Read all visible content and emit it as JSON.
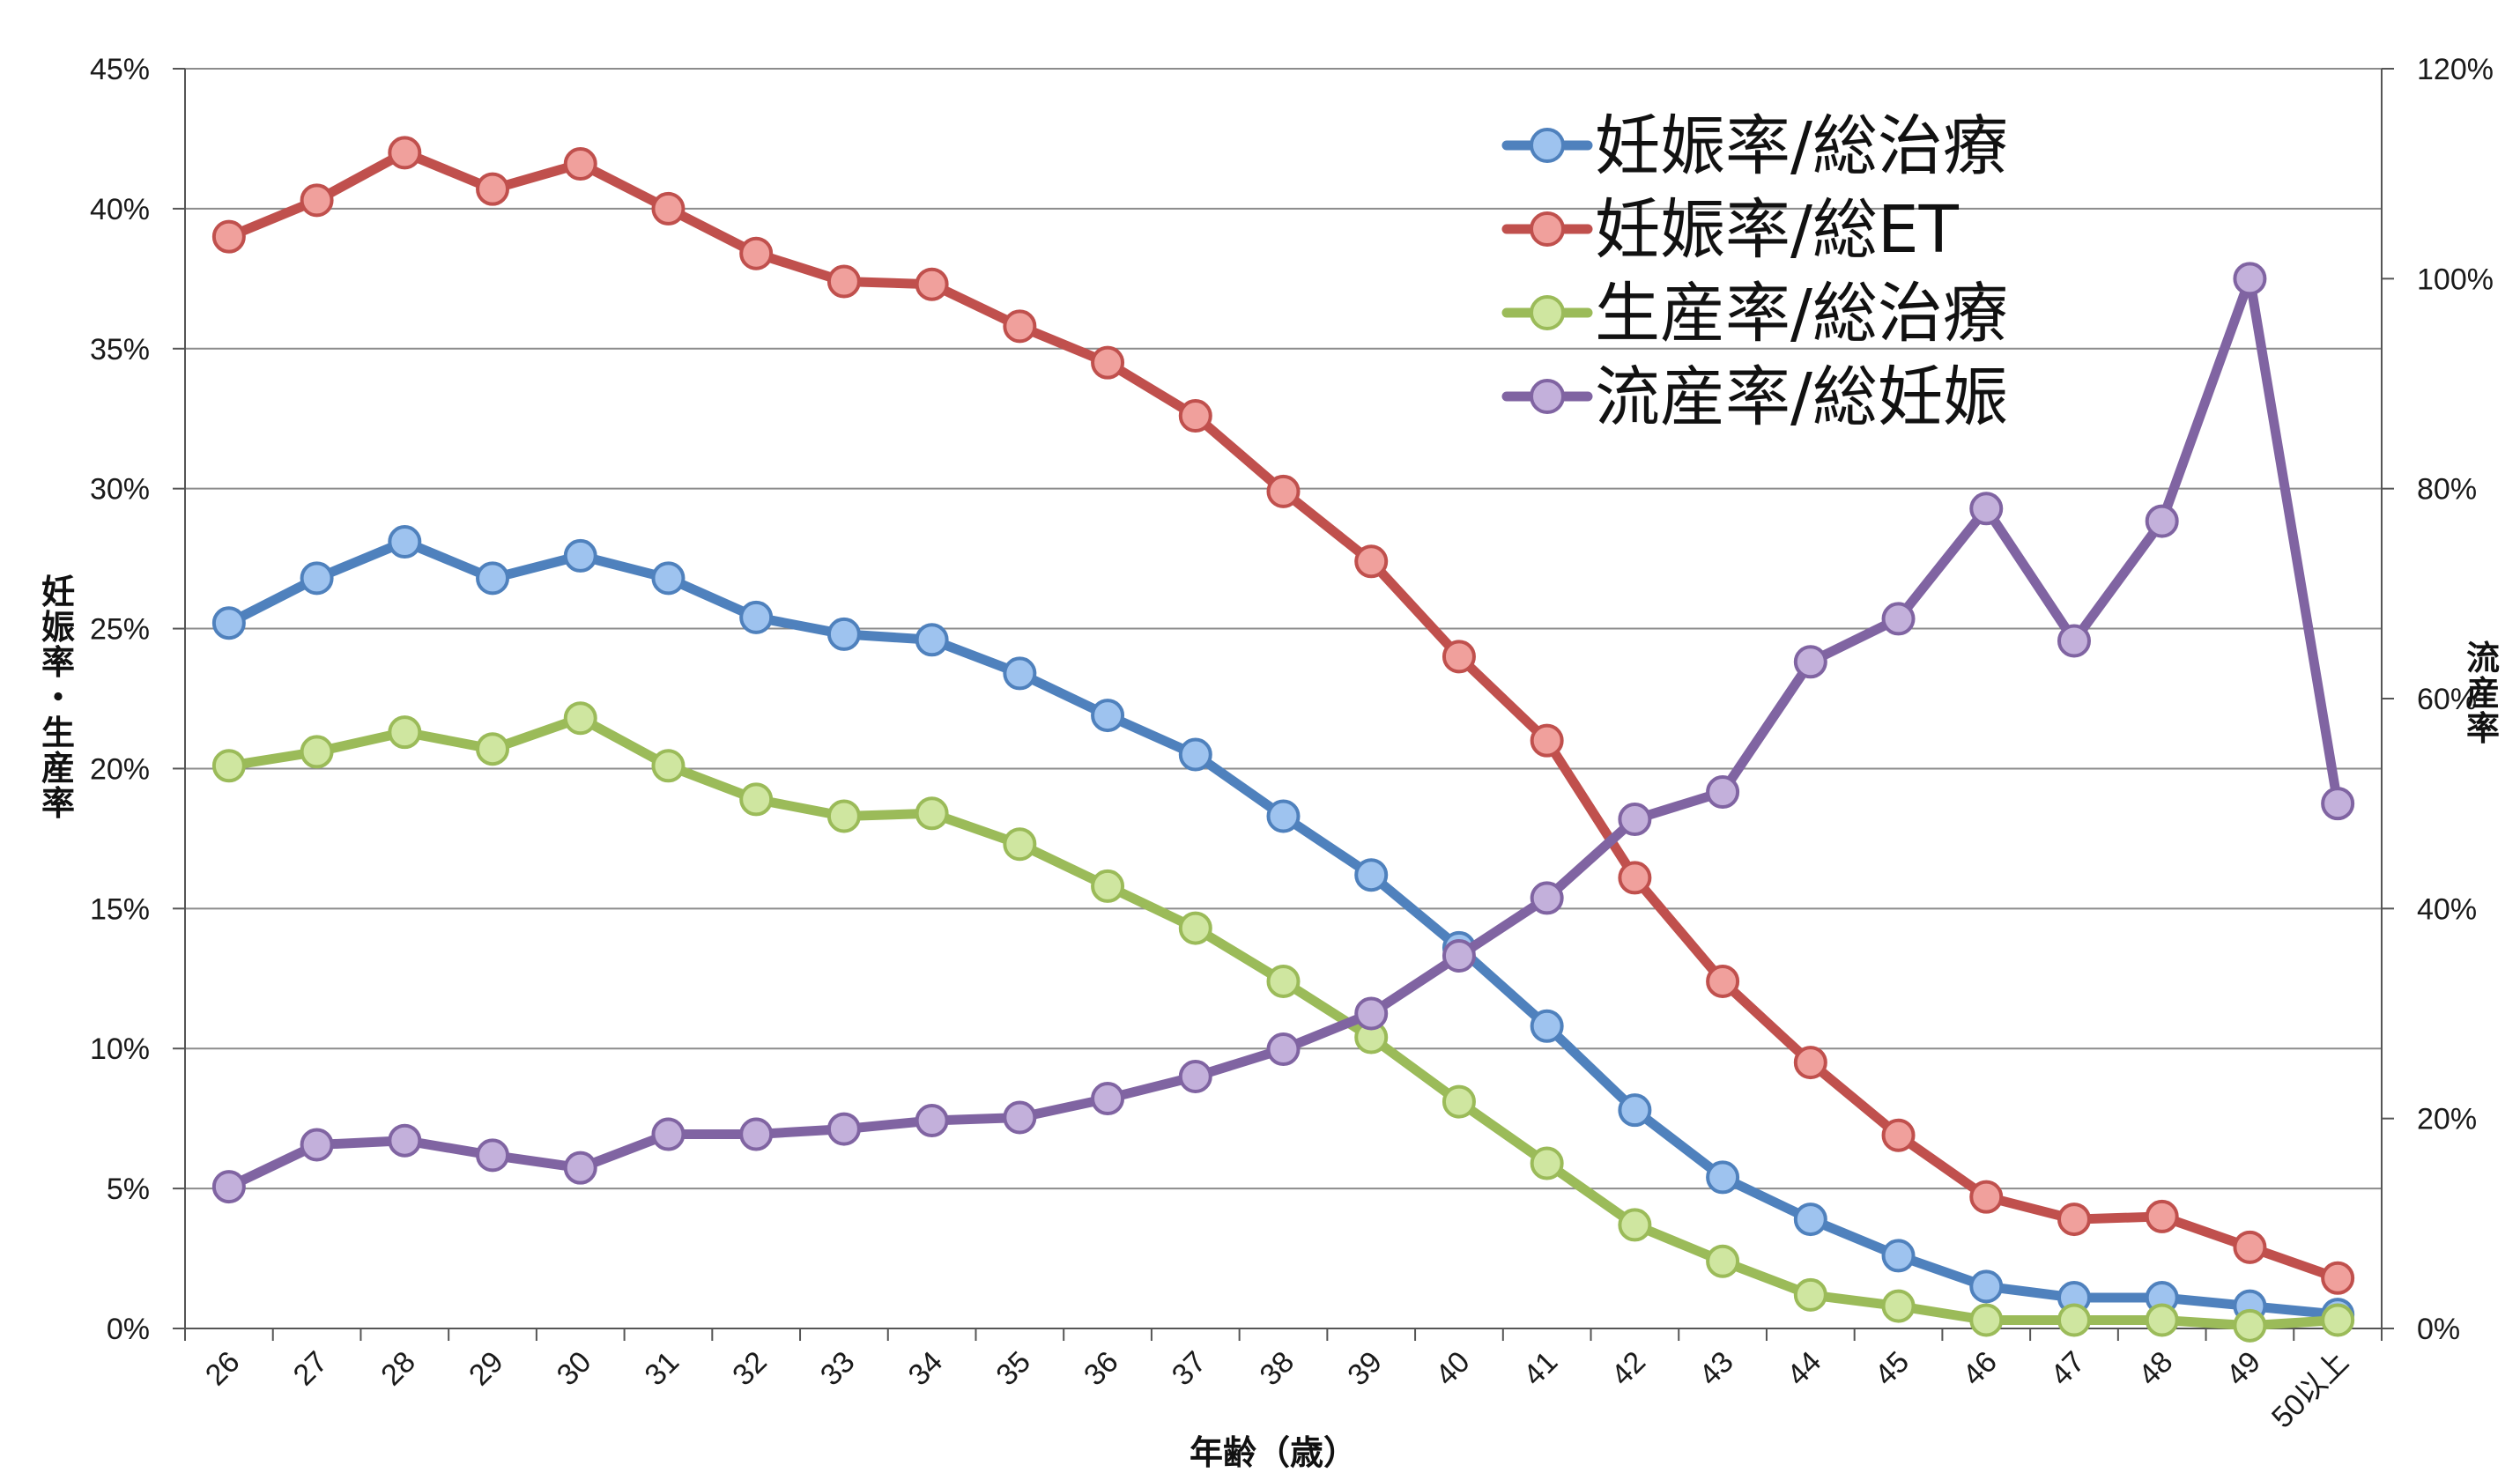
{
  "chart_data": {
    "type": "line",
    "title": "",
    "xlabel": "年齢（歳）",
    "ylabel_left": "妊娠率・生産率",
    "ylabel_right": "流産率",
    "categories": [
      "26",
      "27",
      "28",
      "29",
      "30",
      "31",
      "32",
      "33",
      "34",
      "35",
      "36",
      "37",
      "38",
      "39",
      "40",
      "41",
      "42",
      "43",
      "44",
      "45",
      "46",
      "47",
      "48",
      "49",
      "50以上"
    ],
    "y_left": {
      "lim": [
        0,
        45
      ],
      "ticks": [
        0,
        5,
        10,
        15,
        20,
        25,
        30,
        35,
        40,
        45
      ],
      "tick_labels": [
        "0%",
        "5%",
        "10%",
        "15%",
        "20%",
        "25%",
        "30%",
        "35%",
        "40%",
        "45%"
      ]
    },
    "y_right": {
      "lim": [
        0,
        120
      ],
      "ticks": [
        0,
        20,
        40,
        60,
        80,
        100,
        120
      ],
      "tick_labels": [
        "0%",
        "20%",
        "40%",
        "60%",
        "80%",
        "100%",
        "120%"
      ]
    },
    "grid": true,
    "legend_position": "top-right",
    "series": [
      {
        "name": "妊娠率/総治療",
        "axis": "left",
        "color": "#4f81bd",
        "marker_fill": "#9ec3ef",
        "values": [
          25.2,
          26.8,
          28.1,
          26.8,
          27.6,
          26.8,
          25.4,
          24.8,
          24.6,
          23.4,
          21.9,
          20.5,
          18.3,
          16.2,
          13.6,
          10.8,
          7.8,
          5.4,
          3.9,
          2.6,
          1.5,
          1.1,
          1.1,
          0.8,
          0.5
        ]
      },
      {
        "name": "妊娠率/総ET",
        "axis": "left",
        "color": "#c0504d",
        "marker_fill": "#f0a09c",
        "values": [
          39.0,
          40.3,
          42.0,
          40.7,
          41.6,
          40.0,
          38.4,
          37.4,
          37.3,
          35.8,
          34.5,
          32.6,
          29.9,
          27.4,
          24.0,
          21.0,
          16.1,
          12.4,
          9.5,
          6.9,
          4.7,
          3.9,
          4.0,
          2.9,
          1.8
        ]
      },
      {
        "name": "生産率/総治療",
        "axis": "left",
        "color": "#9bbb59",
        "marker_fill": "#cfe6a0",
        "values": [
          20.1,
          20.6,
          21.3,
          20.7,
          21.8,
          20.1,
          18.9,
          18.3,
          18.4,
          17.3,
          15.8,
          14.3,
          12.4,
          10.4,
          8.1,
          5.9,
          3.7,
          2.4,
          1.2,
          0.8,
          0.3,
          0.3,
          0.3,
          0.1,
          0.3
        ]
      },
      {
        "name": "流産率/総妊娠",
        "axis": "right",
        "color": "#8064a2",
        "marker_fill": "#c3b0db",
        "values": [
          13.5,
          17.5,
          17.9,
          16.5,
          15.3,
          18.5,
          18.5,
          19.0,
          19.8,
          20.1,
          21.9,
          24.0,
          26.6,
          30.0,
          35.5,
          41.0,
          48.5,
          51.1,
          63.5,
          67.6,
          78.1,
          65.5,
          76.9,
          100.0,
          50.0
        ]
      }
    ]
  }
}
